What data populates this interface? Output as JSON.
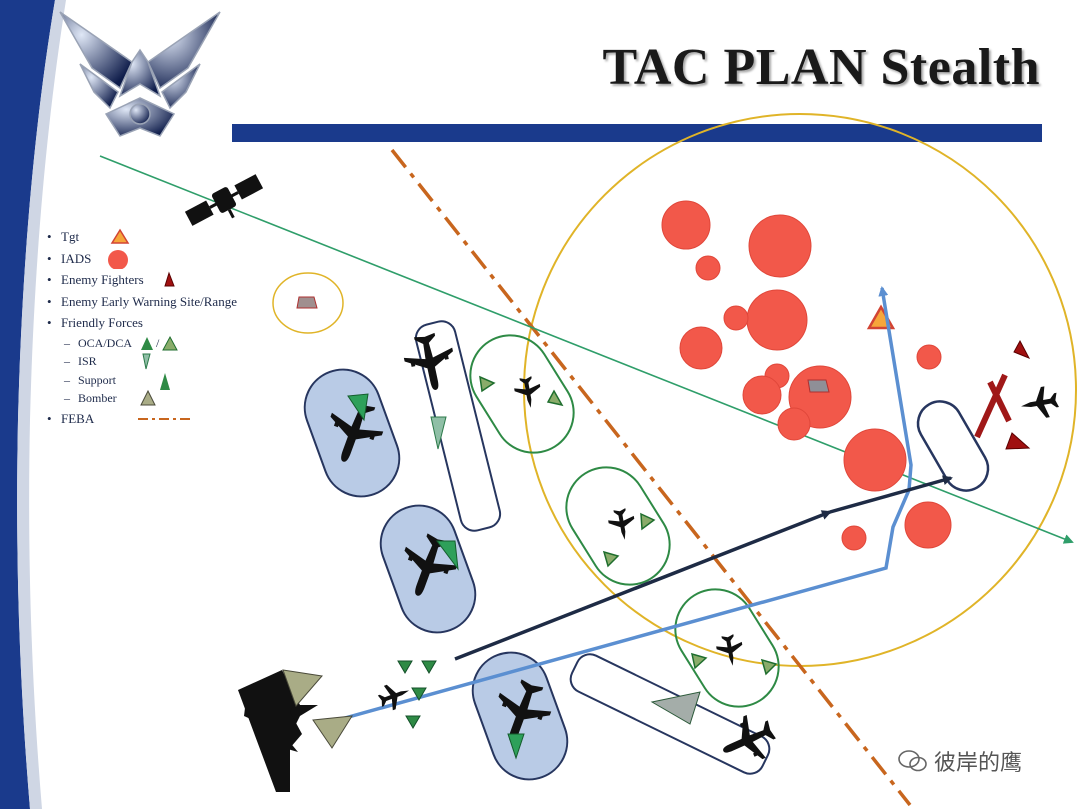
{
  "title": "TAC PLAN Stealth",
  "legend": {
    "tgt": "Tgt",
    "iads": "IADS",
    "enemy_fighters": "Enemy Fighters",
    "ew_site": "Enemy Early Warning Site/Range",
    "friendly_forces": "Friendly Forces",
    "oca_dca": "OCA/DCA",
    "oca_dca_sep": "/",
    "isr": "ISR",
    "support": "Support",
    "bomber": "Bomber",
    "feba": "FEBA"
  },
  "watermark": "彼岸的鹰",
  "colors": {
    "iads": "#f2584a",
    "threat_ring": "#e0b428",
    "feba": "#c8661e",
    "ew_track": "#2f9e6a",
    "friendly_green": "#3a9a4a",
    "bomber": "#a9ac86",
    "orbit_blue": "#b9cbe6",
    "route_blue": "#5b8fd1",
    "route_dark": "#1e2b45",
    "banner_blue": "#1a3a8c"
  }
}
